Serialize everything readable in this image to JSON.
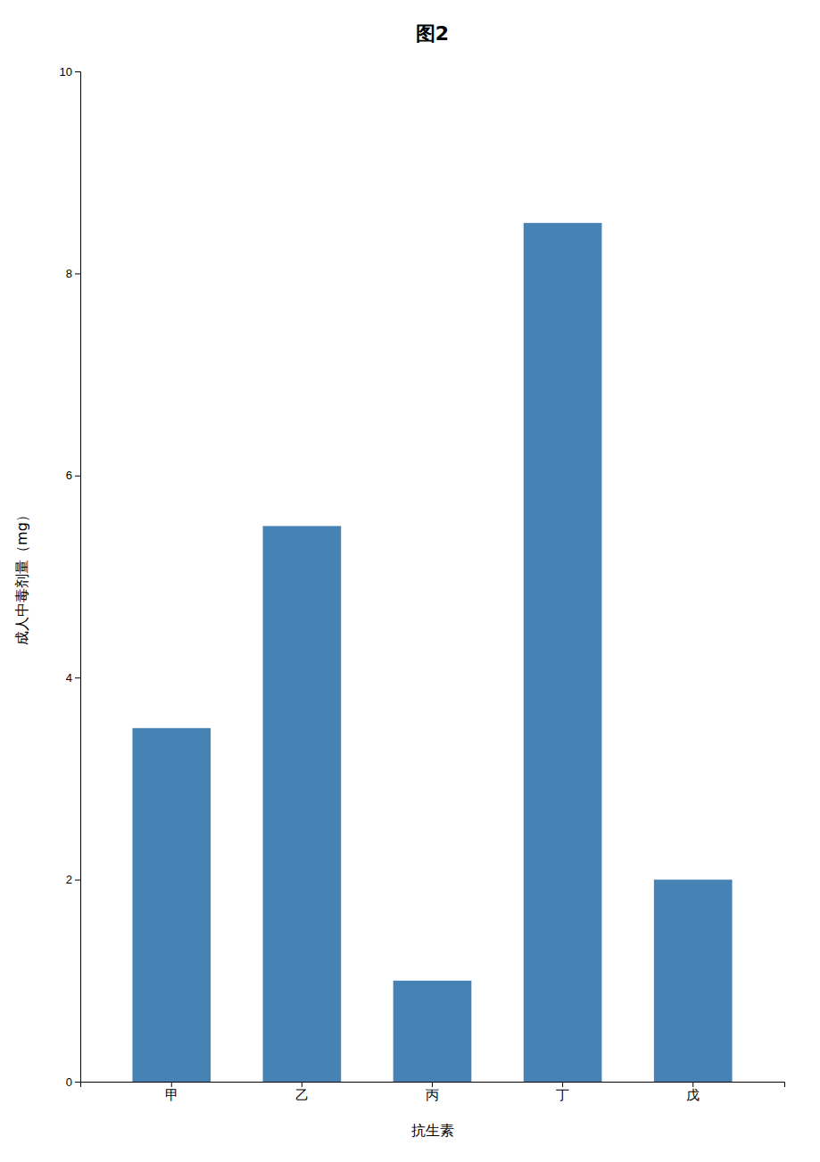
{
  "chart_data": {
    "type": "bar",
    "title": "图2",
    "categories": [
      "甲",
      "乙",
      "丙",
      "丁",
      "戊"
    ],
    "values": [
      3.5,
      5.5,
      1.0,
      8.5,
      2.0
    ],
    "xlabel": "抗生素",
    "ylabel": "成人中毒剂量（mg）",
    "ylim": [
      0,
      10
    ],
    "yticks": [
      0,
      2,
      4,
      6,
      8,
      10
    ]
  }
}
